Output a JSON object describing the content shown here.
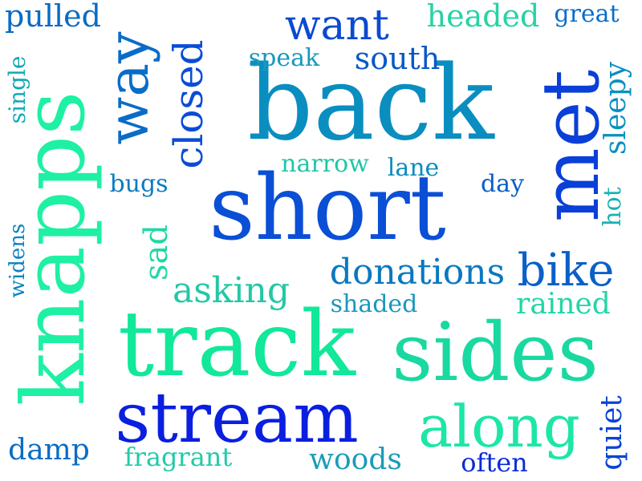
{
  "words": [
    {
      "text": "back",
      "color": "#0a8ec0"
    },
    {
      "text": "short",
      "color": "#0a4fd6"
    },
    {
      "text": "track",
      "color": "#11e89a"
    },
    {
      "text": "sides",
      "color": "#19d9a0"
    },
    {
      "text": "knapps",
      "color": "#1ef0a4"
    },
    {
      "text": "stream",
      "color": "#0a1fe0"
    },
    {
      "text": "met",
      "color": "#0a3fd8"
    },
    {
      "text": "along",
      "color": "#1de6a6"
    },
    {
      "text": "way",
      "color": "#0a6cc8"
    },
    {
      "text": "closed",
      "color": "#0a4cd6"
    },
    {
      "text": "bike",
      "color": "#0a60c8"
    },
    {
      "text": "want",
      "color": "#0a4ad0"
    },
    {
      "text": "donations",
      "color": "#0a78c0"
    },
    {
      "text": "asking",
      "color": "#23c8a6"
    },
    {
      "text": "south",
      "color": "#0a58c8"
    },
    {
      "text": "headed",
      "color": "#26d3a4"
    },
    {
      "text": "pulled",
      "color": "#0a6bc4"
    },
    {
      "text": "rained",
      "color": "#22d6a6"
    },
    {
      "text": "quiet",
      "color": "#0a44d6"
    },
    {
      "text": "sleepy",
      "color": "#0a90c0"
    },
    {
      "text": "sad",
      "color": "#22d7a6"
    },
    {
      "text": "woods",
      "color": "#1a9cb8"
    },
    {
      "text": "damp",
      "color": "#0a6cc4"
    },
    {
      "text": "often",
      "color": "#0a2ad8"
    },
    {
      "text": "fragrant",
      "color": "#22cba6"
    },
    {
      "text": "great",
      "color": "#0a6ec8"
    },
    {
      "text": "speak",
      "color": "#1998bc"
    },
    {
      "text": "narrow",
      "color": "#20c6a8"
    },
    {
      "text": "lane",
      "color": "#0a8cbe"
    },
    {
      "text": "bugs",
      "color": "#0a7cc0"
    },
    {
      "text": "day",
      "color": "#0a5ec8"
    },
    {
      "text": "shaded",
      "color": "#1a98bc"
    },
    {
      "text": "single",
      "color": "#11aab4"
    },
    {
      "text": "widens",
      "color": "#0a84c0"
    },
    {
      "text": "hot",
      "color": "#18b2b2"
    }
  ]
}
